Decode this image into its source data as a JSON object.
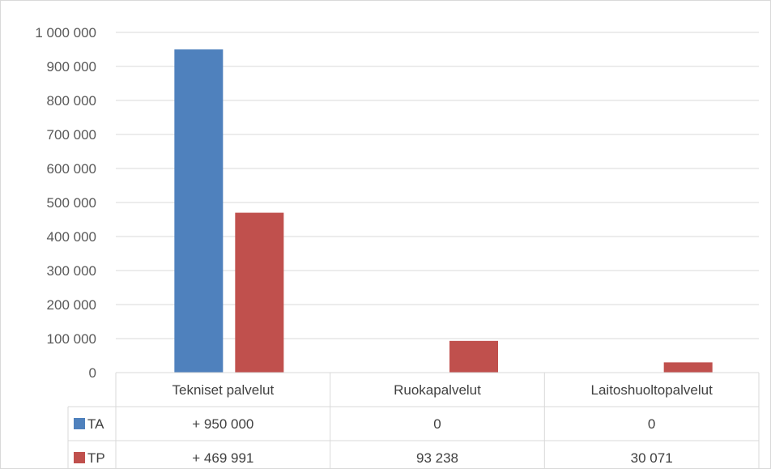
{
  "chart_data": {
    "type": "bar",
    "categories": [
      "Tekniset palvelut",
      "Ruokapalvelut",
      "Laitoshuoltopalvelut"
    ],
    "series": [
      {
        "name": "TA",
        "values": [
          950000,
          0,
          0
        ],
        "display": [
          "+ 950 000",
          "0",
          "0"
        ],
        "color": "#4f81bd"
      },
      {
        "name": "TP",
        "values": [
          469991,
          93238,
          30071
        ],
        "display": [
          "+ 469 991",
          "93 238",
          "30 071"
        ],
        "color": "#c0504d"
      }
    ],
    "ylim": [
      0,
      1000000
    ],
    "yticks": [
      {
        "value": 0,
        "label": "0"
      },
      {
        "value": 100000,
        "label": "100 000"
      },
      {
        "value": 200000,
        "label": "200 000"
      },
      {
        "value": 300000,
        "label": "300 000"
      },
      {
        "value": 400000,
        "label": "400 000"
      },
      {
        "value": 500000,
        "label": "500 000"
      },
      {
        "value": 600000,
        "label": "600 000"
      },
      {
        "value": 700000,
        "label": "700 000"
      },
      {
        "value": 800000,
        "label": "800 000"
      },
      {
        "value": 900000,
        "label": "900 000"
      },
      {
        "value": 1000000,
        "label": "1 000 000"
      }
    ],
    "grid": true,
    "legend": "data-table",
    "data_table": true
  }
}
